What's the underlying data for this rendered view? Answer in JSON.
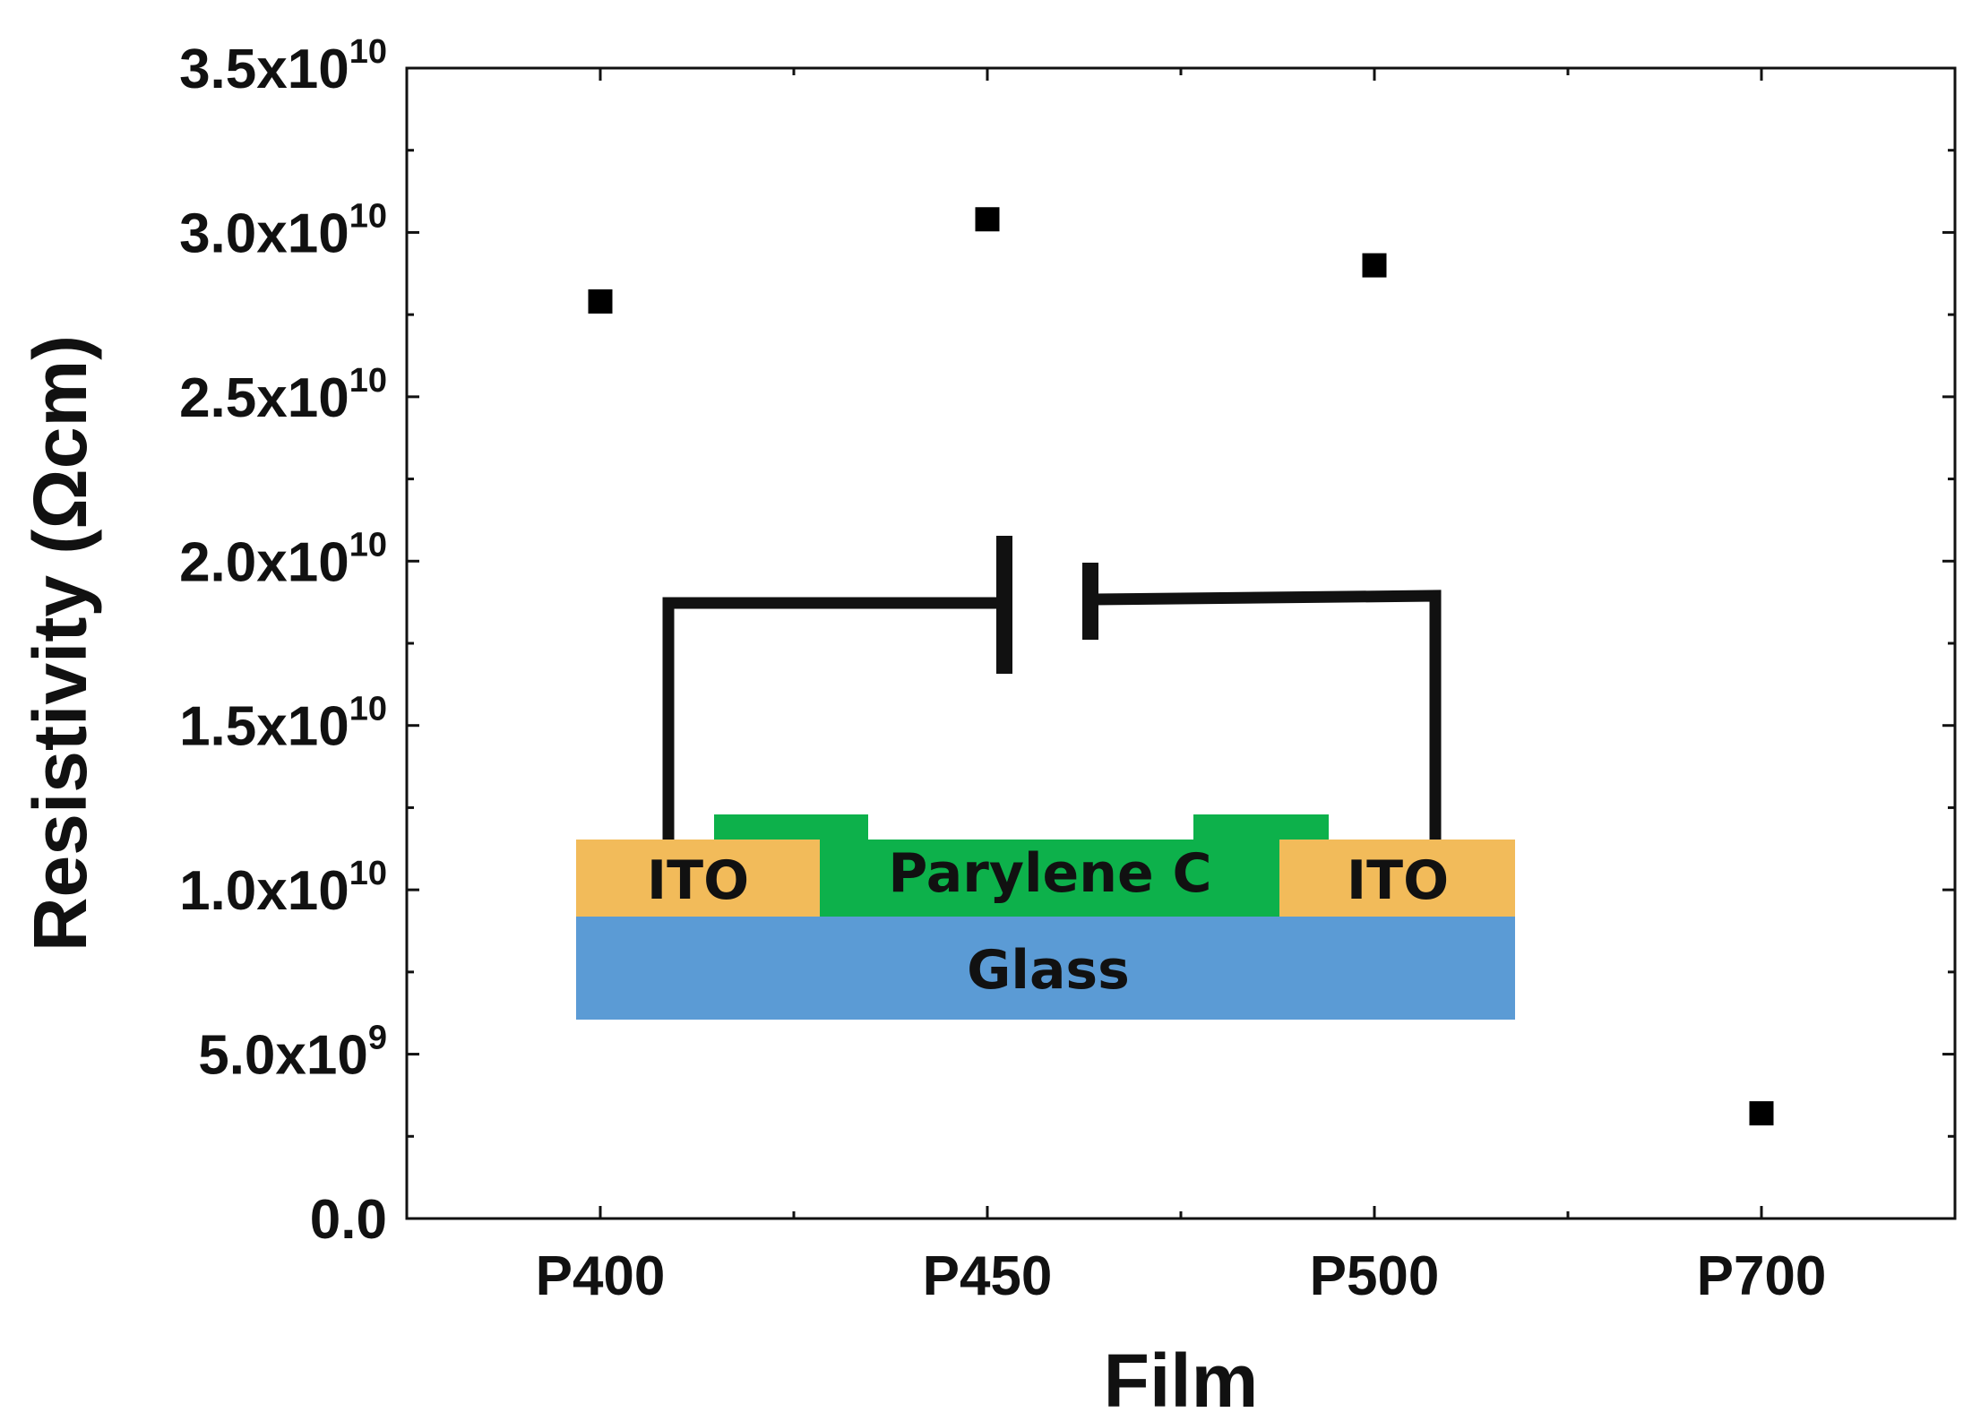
{
  "chart_data": {
    "type": "scatter",
    "xlabel": "Film",
    "ylabel": "Resistivity (Ωcm)",
    "categories": [
      "P400",
      "P450",
      "P500",
      "P700"
    ],
    "series": [
      {
        "values": [
          27900000000.0,
          30400000000.0,
          29000000000.0,
          3200000000.0
        ]
      }
    ],
    "ylim": [
      0,
      35000000000.0
    ],
    "yticks": [
      {
        "value": 0,
        "mantissa": "0.0",
        "times": "",
        "power": ""
      },
      {
        "value": 5000000000.0,
        "mantissa": "5.0",
        "times": "x10",
        "power": "9"
      },
      {
        "value": 10000000000.0,
        "mantissa": "1.0",
        "times": "x10",
        "power": "10"
      },
      {
        "value": 15000000000.0,
        "mantissa": "1.5",
        "times": "x10",
        "power": "10"
      },
      {
        "value": 20000000000.0,
        "mantissa": "2.0",
        "times": "x10",
        "power": "10"
      },
      {
        "value": 25000000000.0,
        "mantissa": "2.5",
        "times": "x10",
        "power": "10"
      },
      {
        "value": 30000000000.0,
        "mantissa": "3.0",
        "times": "x10",
        "power": "10"
      },
      {
        "value": 35000000000.0,
        "mantissa": "3.5",
        "times": "x10",
        "power": "10"
      }
    ],
    "marker_color": "#000000",
    "grid": false,
    "legend": "none"
  },
  "inset": {
    "labels": {
      "ito_left": "ITO",
      "parylene": "Parylene C",
      "ito_right": "ITO",
      "glass": "Glass"
    },
    "colors": {
      "ito": "#f2bb5a",
      "parylene": "#0db14b",
      "glass": "#5b9bd5",
      "wire": "#111111"
    }
  }
}
